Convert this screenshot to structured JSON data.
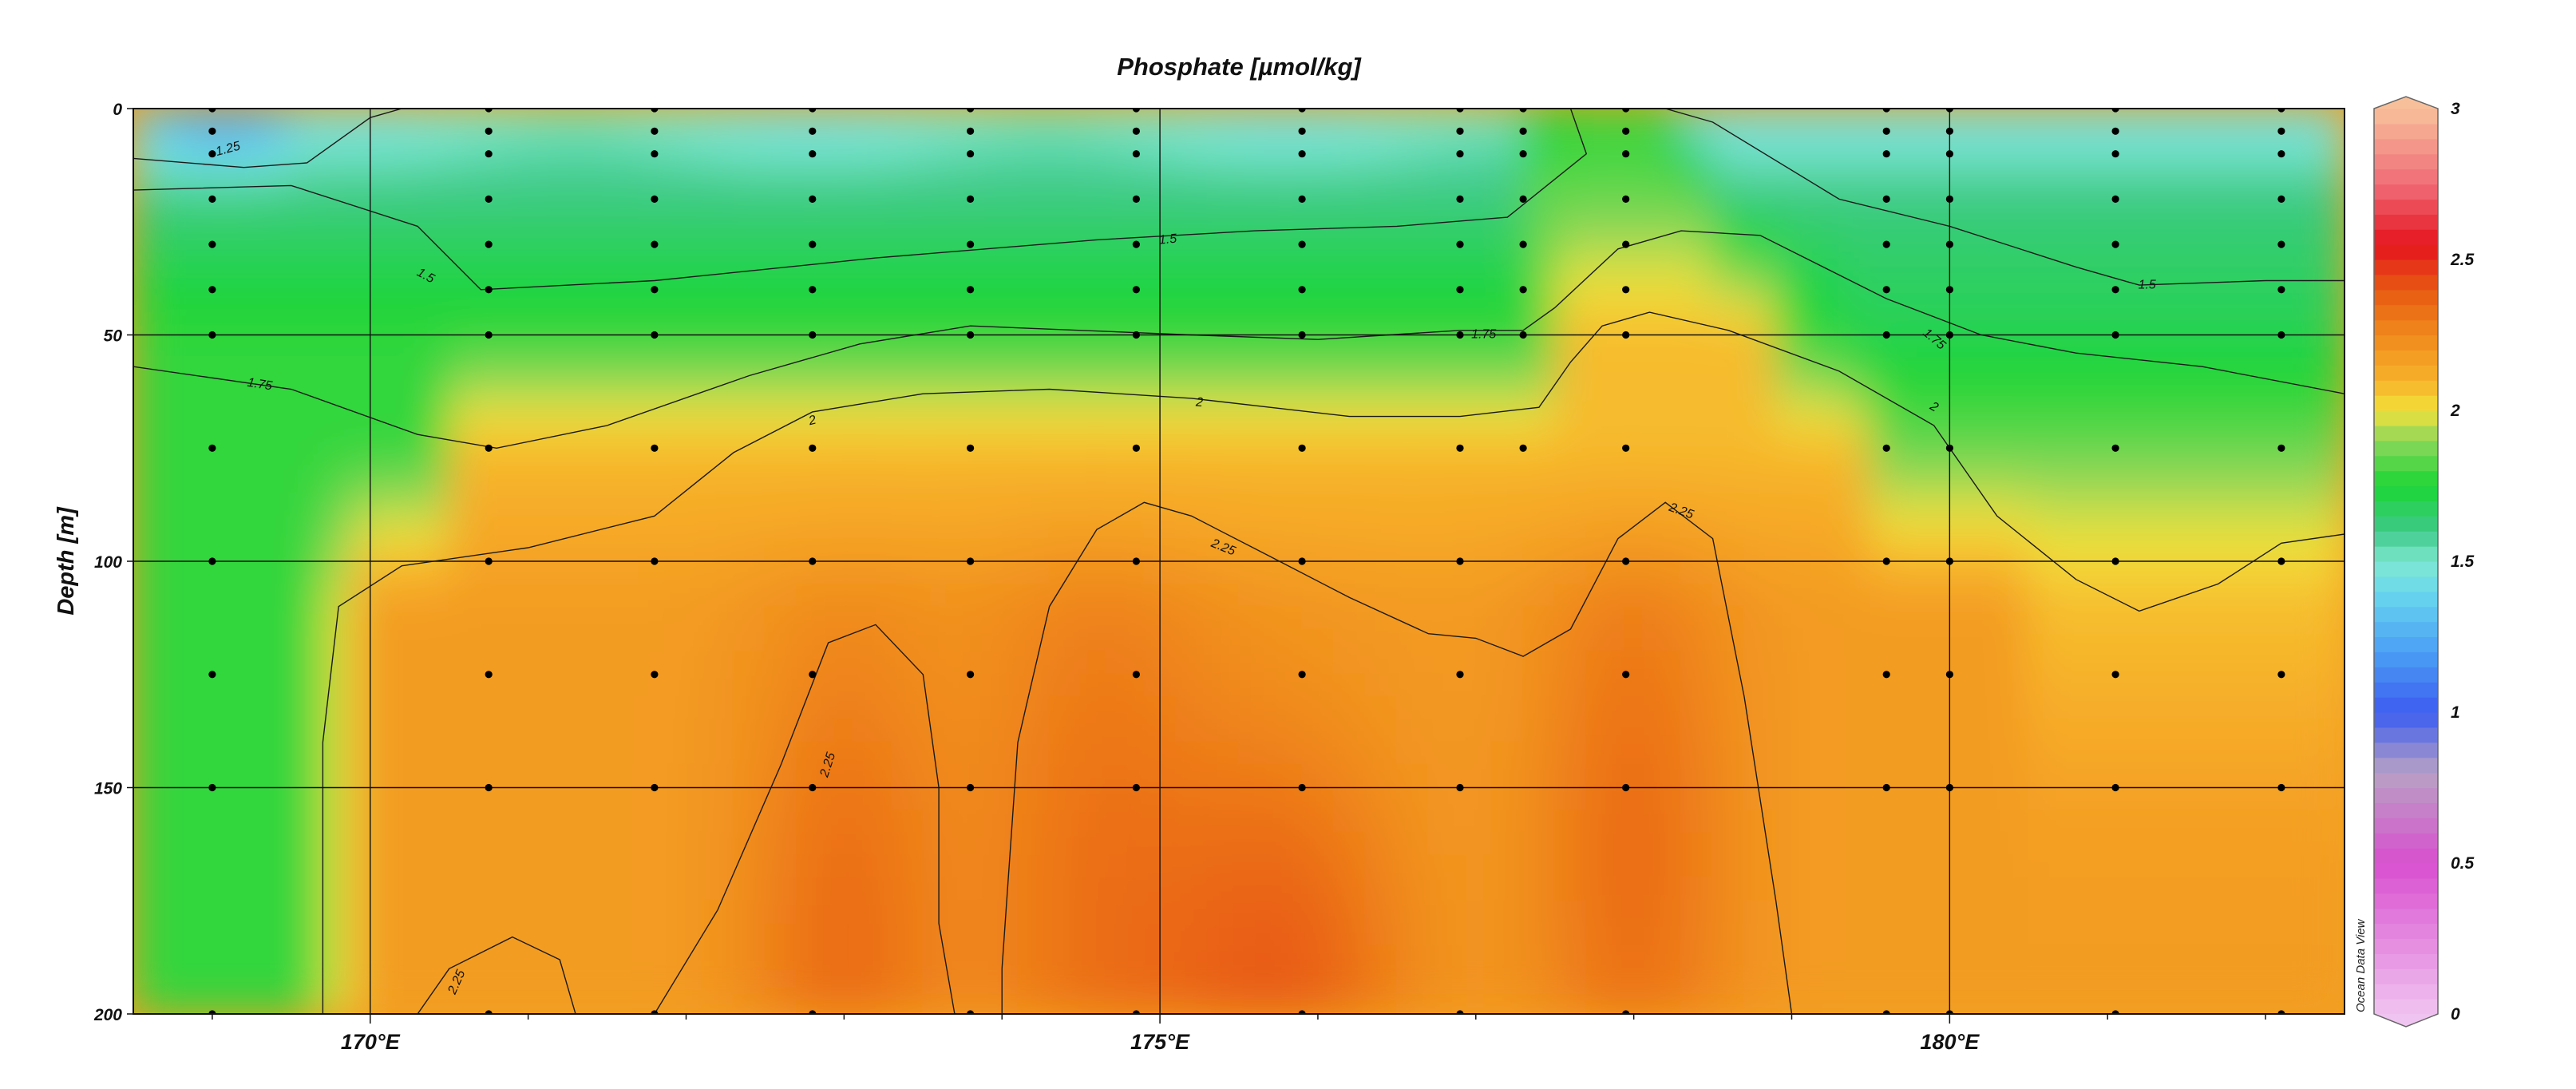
{
  "chart_data": {
    "type": "heatmap",
    "title": "Phosphate [µmol/kg]",
    "ylabel": "Depth [m]",
    "xlabel": "",
    "x_ticks": [
      {
        "value": 170,
        "label": "170°E"
      },
      {
        "value": 175,
        "label": "175°E"
      },
      {
        "value": 180,
        "label": "180°E"
      }
    ],
    "xlim": [
      168.5,
      182.5
    ],
    "y_ticks": [
      0,
      50,
      100,
      150,
      200
    ],
    "ylim": [
      0,
      200
    ],
    "y_inverted": true,
    "grid": true,
    "colorbar": {
      "ticks": [
        "0",
        "0.5",
        "1",
        "1.5",
        "2",
        "2.5",
        "3"
      ],
      "range": [
        0,
        3
      ],
      "stops": [
        {
          "value": 0.0,
          "color": "#f0c4f0"
        },
        {
          "value": 0.5,
          "color": "#d94fcf"
        },
        {
          "value": 0.8,
          "color": "#b8a2c4"
        },
        {
          "value": 1.0,
          "color": "#3c5cf0"
        },
        {
          "value": 1.2,
          "color": "#4a9ff5"
        },
        {
          "value": 1.4,
          "color": "#6ad8ee"
        },
        {
          "value": 1.5,
          "color": "#7ee8cf"
        },
        {
          "value": 1.6,
          "color": "#3fc98a"
        },
        {
          "value": 1.75,
          "color": "#1bd634"
        },
        {
          "value": 1.9,
          "color": "#8dd65c"
        },
        {
          "value": 2.0,
          "color": "#f2e23a"
        },
        {
          "value": 2.1,
          "color": "#f7b12a"
        },
        {
          "value": 2.25,
          "color": "#f08a1c"
        },
        {
          "value": 2.4,
          "color": "#e85a12"
        },
        {
          "value": 2.55,
          "color": "#e4141e"
        },
        {
          "value": 2.75,
          "color": "#f06c78"
        },
        {
          "value": 3.0,
          "color": "#f8c09a"
        }
      ]
    },
    "contour_levels": [
      "1.25",
      "1.5",
      "1.75",
      "2",
      "2.25"
    ],
    "stations": [
      169.0,
      170.75,
      171.8,
      172.8,
      173.8,
      174.85,
      175.9,
      176.9,
      177.3,
      177.95,
      179.6,
      180.0,
      181.05,
      182.1
    ],
    "sample_depths": [
      0,
      5,
      10,
      20,
      30,
      40,
      50,
      75,
      100,
      125,
      150,
      200
    ],
    "watermark": "Ocean Data View"
  }
}
